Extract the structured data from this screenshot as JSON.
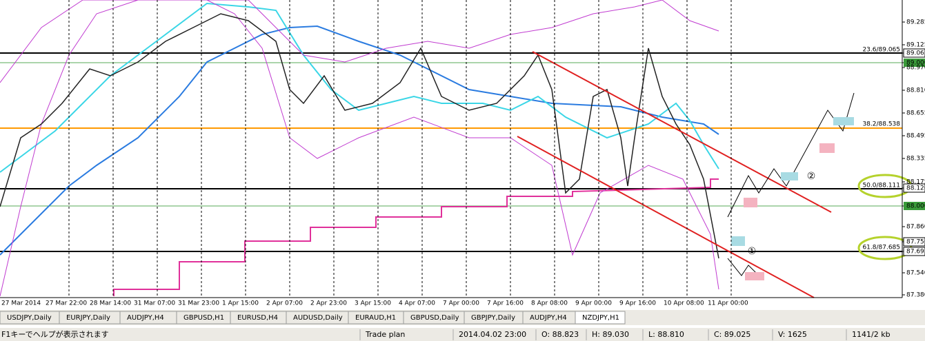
{
  "price_axis": [
    "89.285",
    "89.125",
    "89.065",
    "89.000",
    "88.970",
    "88.810",
    "88.655",
    "88.495",
    "88.335",
    "88.175",
    "88.120",
    "88.000",
    "87.860",
    "87.750",
    "87.695",
    "87.540",
    "87.380"
  ],
  "time_axis": [
    "27 Mar 2014",
    "27 Mar 22:00",
    "28 Mar 14:00",
    "31 Mar 07:00",
    "31 Mar 23:00",
    "1 Apr 15:00",
    "2 Apr 07:00",
    "2 Apr 23:00",
    "3 Apr 15:00",
    "4 Apr 07:00",
    "7 Apr 00:00",
    "7 Apr 16:00",
    "8 Apr 08:00",
    "9 Apr 00:00",
    "9 Apr 16:00",
    "10 Apr 08:00",
    "11 Apr 00:00"
  ],
  "fib_labels": [
    "23.6/89.065",
    "38.2/88.538",
    "50.0/88.111",
    "61.8/87.685"
  ],
  "annotations": [
    "②",
    "①"
  ],
  "tabs": [
    "USDJPY,Daily",
    "EURJPY,Daily",
    "AUDJPY,H4",
    "GBPUSD,H1",
    "EURUSD,H4",
    "AUDUSD,Daily",
    "EURAUD,H1",
    "GBPUSD,Daily",
    "GBPJPY,Daily",
    "AUDJPY,H4",
    "NZDJPY,H1"
  ],
  "status_bar": [
    "F1キーでヘルプが表示されます",
    "Trade plan",
    "2014.04.02 23:00",
    "O: 88.823",
    "H: 89.030",
    "L: 88.810",
    "C: 89.025",
    "V: 1625",
    "1141/2 kb"
  ]
}
